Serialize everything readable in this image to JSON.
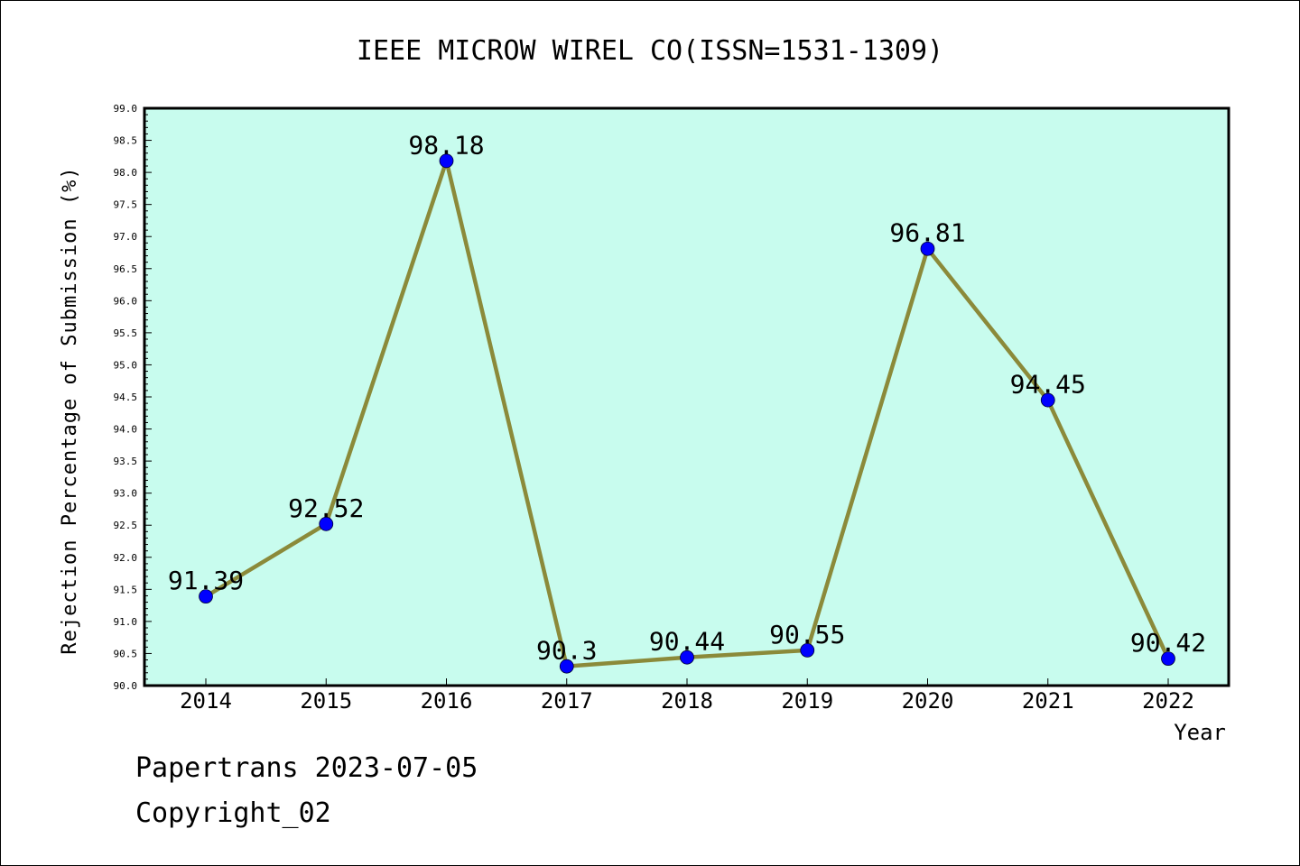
{
  "footer": {
    "line1": "Papertrans 2023-07-05",
    "line2": "Copyright_02"
  },
  "chart_data": {
    "type": "line",
    "title": "IEEE MICROW WIREL CO(ISSN=1531-1309)",
    "xlabel": "Year",
    "ylabel": "Rejection Percentage of Submission (%)",
    "categories": [
      "2014",
      "2015",
      "2016",
      "2017",
      "2018",
      "2019",
      "2020",
      "2021",
      "2022"
    ],
    "values": [
      91.39,
      92.52,
      98.18,
      90.3,
      90.44,
      90.55,
      96.81,
      94.45,
      90.42
    ],
    "data_labels": [
      "91.39",
      "92.52",
      "98.18",
      "90.3",
      "90.44",
      "90.55",
      "96.81",
      "94.45",
      "90.42"
    ],
    "ylim": [
      90.0,
      99.0
    ],
    "yticks": [
      "90.0",
      "90.5",
      "91.0",
      "91.5",
      "92.0",
      "92.5",
      "93.0",
      "93.5",
      "94.0",
      "94.5",
      "95.0",
      "95.5",
      "96.0",
      "96.5",
      "97.0",
      "97.5",
      "98.0",
      "98.5",
      "99.0"
    ],
    "grid": false,
    "plot_background": "#c8fcee",
    "line_color": "#8b8a3a",
    "marker_color": "#0000ff"
  }
}
